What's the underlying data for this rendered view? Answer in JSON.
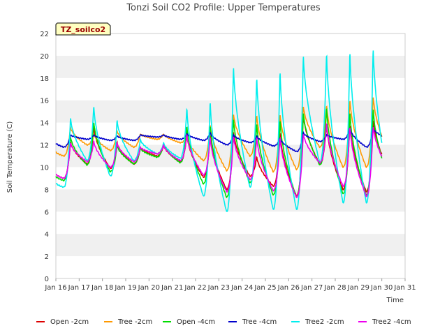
{
  "chart_data": {
    "type": "line",
    "title": "Tonzi Soil CO2 Profile: Upper Temperatures",
    "badge": "TZ_soilco2",
    "xlabel": "Time",
    "ylabel": "Soil Temperature (C)",
    "ylim": [
      0,
      22
    ],
    "y_ticks": [
      0,
      2,
      4,
      6,
      8,
      10,
      12,
      14,
      16,
      18,
      20,
      22
    ],
    "xlim": [
      0,
      15
    ],
    "x_tick_labels": [
      "Jan 16",
      "Jan 17",
      "Jan 18",
      "Jan 19",
      "Jan 20",
      "Jan 21",
      "Jan 22",
      "Jan 23",
      "Jan 24",
      "Jan 25",
      "Jan 26",
      "Jan 27",
      "Jan 28",
      "Jan 29",
      "Jan 30",
      "Jan 31"
    ],
    "grid": "horizontal alternating bands",
    "legend_position": "bottom",
    "series": [
      {
        "name": "Open -2cm",
        "color": "#dd0000",
        "mins": [
          9.0,
          10.3,
          9.9,
          10.3,
          11.0,
          10.5,
          9.1,
          8.0,
          9.2,
          8.3,
          7.4,
          10.3,
          8.0,
          7.8,
          9.6
        ],
        "peaks": [
          12.3,
          13.7,
          12.3,
          11.8,
          12.0,
          13.0,
          13.0,
          13.3,
          11.0,
          13.2,
          14.8,
          14.0,
          14.0,
          14.4
        ],
        "end": 9.6
      },
      {
        "name": "Tree -2cm",
        "color": "#ff9900",
        "mins": [
          11.0,
          12.0,
          11.5,
          11.8,
          12.5,
          12.2,
          10.6,
          9.7,
          11.0,
          9.6,
          9.8,
          11.8,
          10.0,
          10.0,
          11.0
        ],
        "peaks": [
          13.6,
          13.0,
          13.3,
          13.0,
          13.0,
          12.8,
          13.9,
          14.9,
          14.8,
          14.9,
          15.6,
          15.7,
          16.2,
          16.5
        ],
        "end": 11.0
      },
      {
        "name": "Open -4cm",
        "color": "#00dd00",
        "mins": [
          8.8,
          10.2,
          9.6,
          10.3,
          10.9,
          10.4,
          8.5,
          7.3,
          8.6,
          7.5,
          7.3,
          10.2,
          7.6,
          7.5,
          8.7
        ],
        "peaks": [
          12.8,
          14.2,
          12.0,
          11.7,
          12.2,
          13.8,
          13.9,
          14.5,
          14.1,
          14.4,
          15.0,
          15.5,
          15.1,
          15.4
        ],
        "end": 8.7
      },
      {
        "name": "Tree -4cm",
        "color": "#0000cc",
        "mins": [
          11.8,
          12.5,
          12.4,
          12.4,
          12.7,
          12.5,
          12.4,
          12.0,
          12.2,
          11.9,
          11.4,
          12.3,
          12.5,
          11.8,
          12.5
        ],
        "peaks": [
          12.9,
          12.9,
          12.8,
          12.9,
          12.9,
          13.0,
          13.1,
          12.9,
          12.8,
          12.6,
          13.1,
          12.9,
          13.5,
          13.5
        ],
        "end": 12.5
      },
      {
        "name": "Tree2 -2cm",
        "color": "#00eeee",
        "mins": [
          8.2,
          10.6,
          9.2,
          10.6,
          11.2,
          10.8,
          7.4,
          6.0,
          8.2,
          6.2,
          6.2,
          10.4,
          6.8,
          6.8,
          8.0
        ],
        "peaks": [
          14.5,
          15.6,
          14.3,
          12.5,
          12.2,
          15.4,
          16.1,
          19.3,
          18.3,
          18.9,
          20.3,
          20.5,
          20.7,
          21.0
        ],
        "end": 8.0
      },
      {
        "name": "Tree2 -4cm",
        "color": "#ee00ee",
        "mins": [
          9.0,
          10.5,
          10.0,
          10.5,
          11.2,
          10.6,
          9.3,
          7.8,
          8.9,
          7.9,
          7.3,
          10.4,
          8.3,
          7.4,
          9.6
        ],
        "peaks": [
          12.2,
          12.4,
          12.2,
          11.8,
          12.0,
          13.0,
          12.8,
          12.9,
          12.8,
          12.8,
          13.1,
          14.1,
          13.8,
          13.8
        ],
        "end": 9.6
      }
    ]
  }
}
